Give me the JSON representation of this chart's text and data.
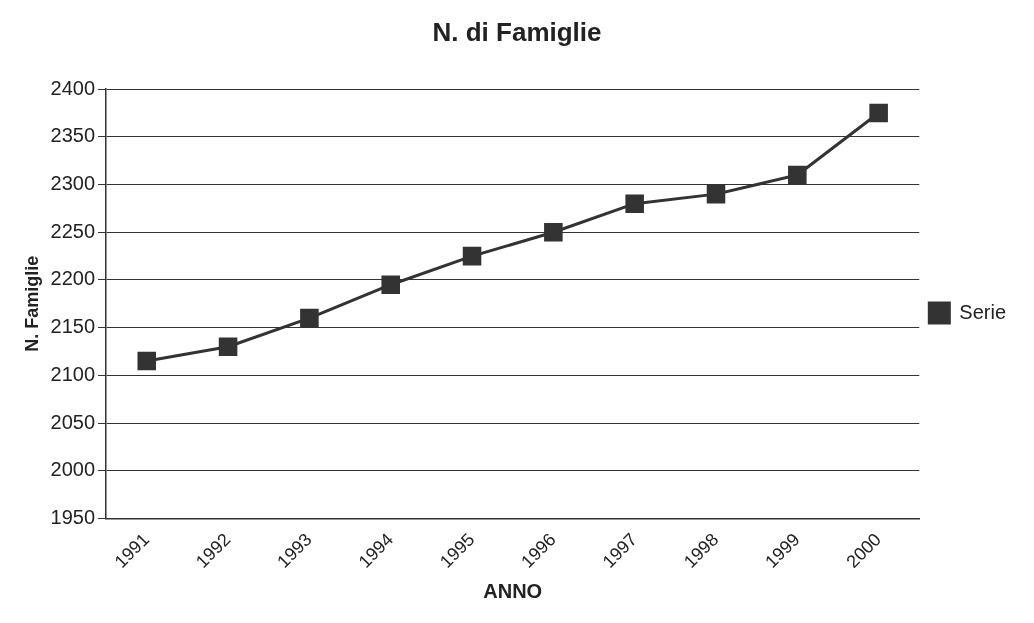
{
  "chart_data": {
    "type": "line",
    "title": "N. di Famiglie",
    "xlabel": "ANNO",
    "ylabel": "N. Famiglie",
    "categories": [
      "1991",
      "1992",
      "1993",
      "1994",
      "1995",
      "1996",
      "1997",
      "1998",
      "1999",
      "2000"
    ],
    "series": [
      {
        "name": "Serie",
        "color": "#333333",
        "values": [
          2115,
          2130,
          2160,
          2195,
          2225,
          2250,
          2280,
          2290,
          2310,
          2375
        ]
      }
    ],
    "ylim": [
      1950,
      2400
    ],
    "yticks": [
      1950,
      2000,
      2050,
      2100,
      2150,
      2200,
      2250,
      2300,
      2350,
      2400
    ],
    "grid": "y",
    "legend": "right",
    "marker": "square",
    "line_style": "solid"
  }
}
